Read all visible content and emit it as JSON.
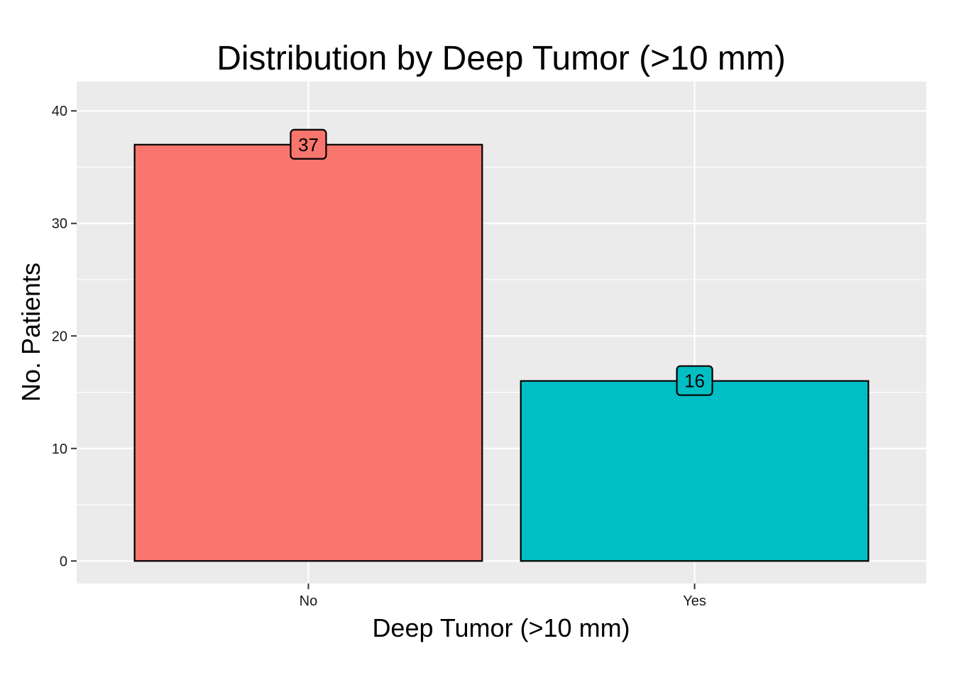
{
  "chart_data": {
    "type": "bar",
    "title": "Distribution by Deep Tumor (>10 mm)",
    "xlabel": "Deep Tumor (>10 mm)",
    "ylabel": "No. Patients",
    "categories": [
      "No",
      "Yes"
    ],
    "values": [
      37,
      16
    ],
    "data_labels": [
      "37",
      "16"
    ],
    "colors": [
      "#F8766D",
      "#00BFC4"
    ],
    "y_ticks": [
      0,
      10,
      20,
      30,
      40
    ],
    "y_tick_labels": [
      "0",
      "10",
      "20",
      "30",
      "40"
    ],
    "ylim": [
      -2,
      42.6
    ],
    "grid": true,
    "legend": "none",
    "panel_background": "#EBEBEB",
    "grid_color": "#FFFFFF",
    "bar_outline": "#000000"
  }
}
